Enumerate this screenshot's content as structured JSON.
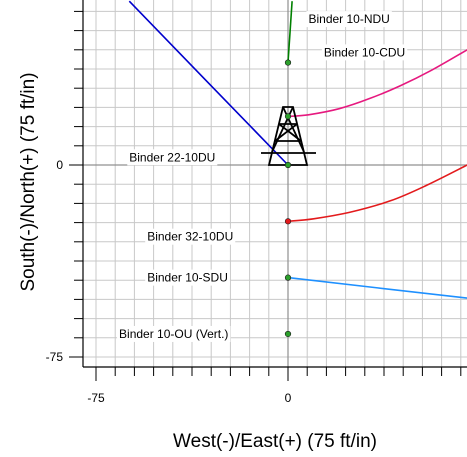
{
  "chart_data": {
    "type": "line",
    "title": "",
    "xlabel": "West(-)/East(+) (75 ft/in)",
    "ylabel": "South(-)/North(+) (75 ft/in)",
    "xlim": [
      -82,
      70
    ],
    "ylim": [
      -80,
      64
    ],
    "x_ticks": [
      "-75",
      "0"
    ],
    "x_tick_values": [
      -75,
      0
    ],
    "y_ticks": [
      "0",
      "-75"
    ],
    "y_tick_values": [
      0,
      -75
    ],
    "grid": true,
    "series": [
      {
        "name": "Binder 10-NDU",
        "color": "#008000",
        "points": [
          [
            0,
            40
          ],
          [
            1.6,
            64
          ]
        ]
      },
      {
        "name": "Binder 10-CDU",
        "color": "#e6197f",
        "points": [
          [
            0,
            19
          ],
          [
            8,
            19.6
          ],
          [
            20,
            22
          ],
          [
            32,
            26
          ],
          [
            44,
            31
          ],
          [
            56,
            37
          ],
          [
            70,
            45
          ]
        ]
      },
      {
        "name": "Binder 22-10DU",
        "color": "#0000cc",
        "points": [
          [
            0,
            0
          ],
          [
            -62,
            64
          ]
        ]
      },
      {
        "name": "Binder 32-10DU",
        "color": "#e31a1c",
        "points": [
          [
            0,
            -22
          ],
          [
            10,
            -21
          ],
          [
            24,
            -18.5
          ],
          [
            40,
            -14
          ],
          [
            54,
            -8
          ],
          [
            70,
            0
          ]
        ]
      },
      {
        "name": "Binder 10-SDU",
        "color": "#1e90ff",
        "points": [
          [
            0,
            -44
          ],
          [
            70,
            -52
          ]
        ]
      },
      {
        "name": "Binder 10-OU (Vert.)",
        "color": "#008000",
        "points": [
          [
            0,
            -66
          ]
        ]
      }
    ],
    "label_anchors": [
      {
        "name": "Binder 10-NDU",
        "x": 8,
        "y": 57
      },
      {
        "name": "Binder 10-CDU",
        "x": 14,
        "y": 44
      },
      {
        "name": "Binder 22-10DU",
        "x": -62,
        "y": 3
      },
      {
        "name": "Binder 32-10DU",
        "x": -55,
        "y": -28
      },
      {
        "name": "Binder 10-SDU",
        "x": -55,
        "y": -44
      },
      {
        "name": "Binder 10-OU (Vert.)",
        "x": -66,
        "y": -66
      }
    ],
    "surface_symbol": "drilling-rig",
    "colors": {
      "grid": "#c8c8c8",
      "axis": "#000000",
      "origin_lines": "#909090"
    }
  }
}
